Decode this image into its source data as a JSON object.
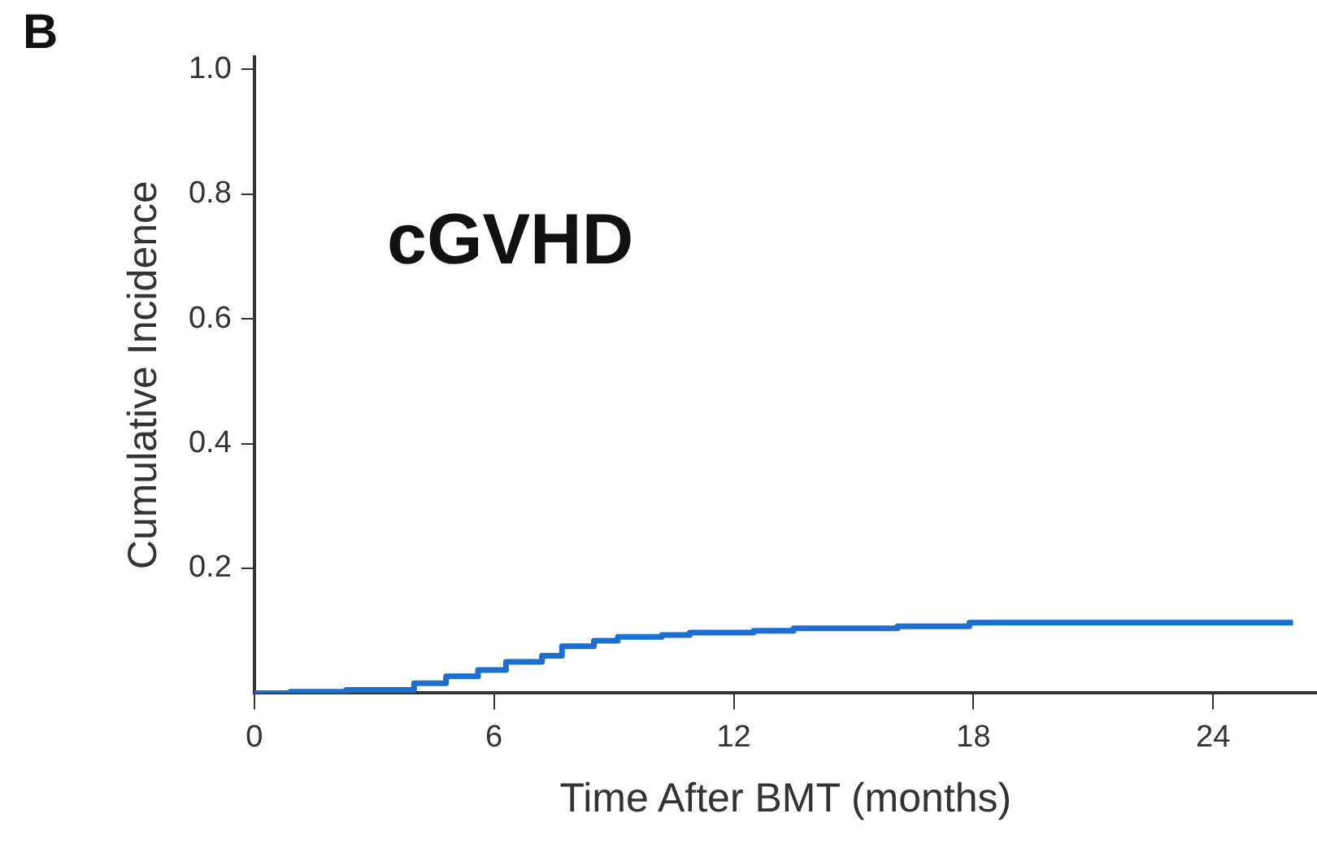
{
  "chart_data": {
    "type": "step",
    "xlabel": "Time After BMT (months)",
    "ylabel": "Cumulative Incidence",
    "annotations": [
      "B",
      "cGVHD"
    ],
    "x": [
      0,
      0.9,
      2.3,
      3.4,
      4.0,
      4.8,
      5.6,
      6.3,
      7.2,
      7.7,
      8.5,
      9.1,
      10.2,
      10.9,
      12.5,
      13.5,
      16.1,
      17.9,
      26.0
    ],
    "series": [
      {
        "color": "#1a6fd0",
        "values": [
          0,
          0.002,
          0.005,
          0.005,
          0.016,
          0.027,
          0.037,
          0.05,
          0.06,
          0.075,
          0.084,
          0.09,
          0.093,
          0.097,
          0.1,
          0.104,
          0.107,
          0.113,
          0.113
        ]
      }
    ],
    "xlim": [
      0,
      26.6
    ],
    "ylim": [
      0,
      1.02
    ],
    "xticks": [
      0,
      6,
      12,
      18,
      24
    ],
    "yticks": [
      0.2,
      0.4,
      0.6,
      0.8,
      {
        "value": 1,
        "label": "1.0"
      }
    ],
    "grid": false,
    "legend": false,
    "marker": "none",
    "line_style": "solid"
  }
}
